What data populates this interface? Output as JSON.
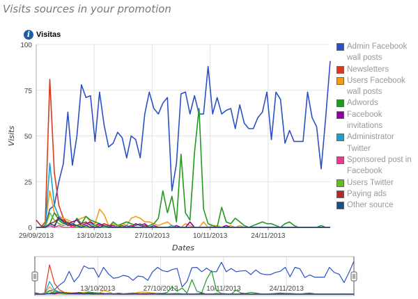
{
  "page": {
    "title": "Visits sources in your promotion"
  },
  "panel": {
    "title": "Visitas",
    "info_icon": "info-icon"
  },
  "chart_data": {
    "type": "line",
    "title": "Visitas",
    "ylabel": "Visits",
    "xlabel": "Dates",
    "ylim": [
      0,
      100
    ],
    "yticks": [
      0,
      25,
      50,
      75,
      100
    ],
    "x_start": "29/09/2013",
    "x_end": "09/12/2013",
    "xticks": [
      "29/09/2013",
      "13/10/2013",
      "27/10/2013",
      "10/11/2013",
      "24/11/2013"
    ],
    "grid": true,
    "legend_position": "right",
    "navigator": {
      "ticks": [
        "13/10/2013",
        "27/10/2013",
        "10/11/2013",
        "24/11/2013"
      ]
    },
    "series": [
      {
        "name": "Admin Facebook wall posts",
        "color": "#2b4fc4",
        "values": [
          0,
          0,
          1,
          10,
          12,
          25,
          35,
          63,
          34,
          50,
          78,
          71,
          72,
          47,
          74,
          56,
          44,
          46,
          52,
          49,
          38,
          50,
          48,
          38,
          62,
          74,
          65,
          62,
          68,
          71,
          20,
          35,
          73,
          74,
          62,
          72,
          62,
          62,
          88,
          62,
          71,
          62,
          64,
          65,
          54,
          67,
          57,
          54,
          54,
          60,
          63,
          74,
          48,
          74,
          70,
          46,
          53,
          47,
          47,
          47,
          74,
          60,
          55,
          32,
          60,
          91
        ]
      },
      {
        "name": "Newsletters",
        "color": "#d73a1e",
        "values": [
          0,
          0,
          3,
          81,
          30,
          12,
          5,
          2,
          0,
          0,
          0,
          0,
          0,
          1,
          0,
          0,
          0,
          0,
          0,
          0,
          0,
          1,
          0,
          0,
          0,
          0,
          0,
          0,
          0,
          0,
          0,
          0,
          0,
          0,
          0,
          0,
          0,
          0,
          0,
          0,
          0,
          0,
          0,
          0,
          0,
          0,
          0,
          0,
          0,
          0,
          0,
          0,
          0,
          0,
          0,
          0,
          0,
          0,
          0,
          0,
          0,
          0,
          0,
          0,
          0,
          0
        ]
      },
      {
        "name": "Users Facebook wall posts",
        "color": "#f59a14",
        "values": [
          0,
          0,
          2,
          20,
          8,
          6,
          5,
          4,
          3,
          4,
          5,
          6,
          3,
          2,
          10,
          7,
          1,
          2,
          0,
          2,
          1,
          5,
          6,
          5,
          3,
          3,
          2,
          1,
          2,
          3,
          1,
          0,
          0,
          2,
          1,
          0,
          0,
          3,
          0,
          1,
          1,
          0,
          0,
          1,
          0,
          1,
          0,
          0,
          0,
          0,
          0,
          0,
          0,
          0,
          0,
          0,
          0,
          0,
          0,
          0,
          0,
          0,
          0,
          0,
          0,
          0
        ]
      },
      {
        "name": "Adwords",
        "color": "#1f9a1f",
        "values": [
          0,
          0,
          0,
          2,
          8,
          4,
          2,
          3,
          1,
          5,
          2,
          6,
          4,
          3,
          2,
          1,
          0,
          3,
          1,
          2,
          3,
          2,
          1,
          2,
          0,
          1,
          2,
          5,
          20,
          8,
          17,
          3,
          40,
          8,
          4,
          41,
          65,
          10,
          2,
          1,
          0,
          11,
          3,
          2,
          5,
          3,
          1,
          0,
          1,
          2,
          3,
          2,
          2,
          1,
          0,
          2,
          3,
          1,
          0,
          0,
          0,
          0,
          0,
          1,
          0,
          0
        ]
      },
      {
        "name": "Facebook invitations",
        "color": "#8e00a0",
        "values": [
          0,
          0,
          0,
          1,
          0,
          6,
          3,
          2,
          3,
          4,
          1,
          2,
          3,
          1,
          2,
          0,
          1,
          1,
          0,
          0,
          1,
          0,
          2,
          1,
          2,
          0,
          1,
          0,
          0,
          0,
          0,
          1,
          0,
          0,
          3,
          0,
          0,
          0,
          0,
          0,
          0,
          0,
          1,
          0,
          0,
          0,
          0,
          0,
          0,
          0,
          0,
          0,
          0,
          0,
          0,
          0,
          0,
          0,
          0,
          0,
          0,
          0,
          0,
          0,
          0,
          0
        ]
      },
      {
        "name": "Administrator Twitter",
        "color": "#1aa0cc",
        "values": [
          0,
          0,
          0,
          35,
          12,
          6,
          3,
          2,
          1,
          1,
          0,
          1,
          2,
          1,
          0,
          0,
          1,
          0,
          0,
          0,
          1,
          0,
          0,
          0,
          1,
          0,
          0,
          0,
          0,
          0,
          1,
          0,
          0,
          0,
          0,
          0,
          0,
          0,
          0,
          0,
          0,
          0,
          0,
          0,
          0,
          0,
          0,
          0,
          0,
          0,
          0,
          0,
          0,
          0,
          0,
          0,
          0,
          0,
          0,
          0,
          0,
          0,
          0,
          0,
          0,
          0
        ]
      },
      {
        "name": "Sponsored post in Facebook",
        "color": "#e0428a",
        "values": [
          0,
          0,
          0,
          1,
          0,
          1,
          0,
          0,
          0,
          0,
          1,
          0,
          0,
          0,
          0,
          0,
          0,
          0,
          0,
          0,
          0,
          0,
          0,
          0,
          0,
          0,
          0,
          0,
          0,
          0,
          0,
          0,
          0,
          0,
          0,
          0,
          0,
          0,
          0,
          0,
          0,
          0,
          0,
          0,
          0,
          0,
          0,
          0,
          0,
          0,
          0,
          0,
          0,
          0,
          0,
          0,
          0,
          0,
          0,
          0,
          0,
          0,
          0,
          0,
          0,
          0
        ]
      },
      {
        "name": "Users Twitter",
        "color": "#66bb22",
        "values": [
          0,
          0,
          0,
          8,
          4,
          2,
          1,
          2,
          1,
          0,
          1,
          0,
          0,
          1,
          0,
          0,
          0,
          0,
          1,
          0,
          0,
          0,
          0,
          0,
          0,
          0,
          0,
          0,
          0,
          0,
          0,
          0,
          0,
          0,
          0,
          0,
          0,
          0,
          0,
          0,
          0,
          0,
          0,
          0,
          0,
          0,
          0,
          0,
          0,
          0,
          0,
          0,
          0,
          0,
          0,
          0,
          0,
          0,
          0,
          0,
          0,
          0,
          0,
          0,
          0,
          0
        ]
      },
      {
        "name": "Paying ads",
        "color": "#b22a2a",
        "values": [
          4,
          1,
          0,
          2,
          3,
          5,
          4,
          2,
          1,
          1,
          2,
          3,
          1,
          0,
          1,
          2,
          1,
          0,
          0,
          1,
          0,
          1,
          0,
          0,
          1,
          0,
          0,
          0,
          0,
          0,
          0,
          0,
          0,
          0,
          0,
          0,
          0,
          0,
          0,
          0,
          0,
          0,
          0,
          0,
          0,
          0,
          0,
          0,
          0,
          0,
          0,
          0,
          0,
          0,
          0,
          0,
          0,
          0,
          0,
          0,
          0,
          0,
          0,
          0,
          0,
          0
        ]
      },
      {
        "name": "Other source",
        "color": "#1b4d8a",
        "values": [
          0,
          0,
          0,
          2,
          1,
          5,
          3,
          1,
          2,
          1,
          0,
          1,
          0,
          0,
          0,
          1,
          0,
          0,
          0,
          0,
          0,
          0,
          0,
          0,
          0,
          0,
          0,
          0,
          0,
          0,
          0,
          0,
          0,
          0,
          0,
          0,
          0,
          0,
          0,
          0,
          0,
          0,
          0,
          0,
          0,
          0,
          0,
          0,
          0,
          0,
          0,
          0,
          0,
          0,
          0,
          0,
          0,
          0,
          0,
          0,
          0,
          0,
          0,
          0,
          0,
          0
        ]
      }
    ]
  }
}
